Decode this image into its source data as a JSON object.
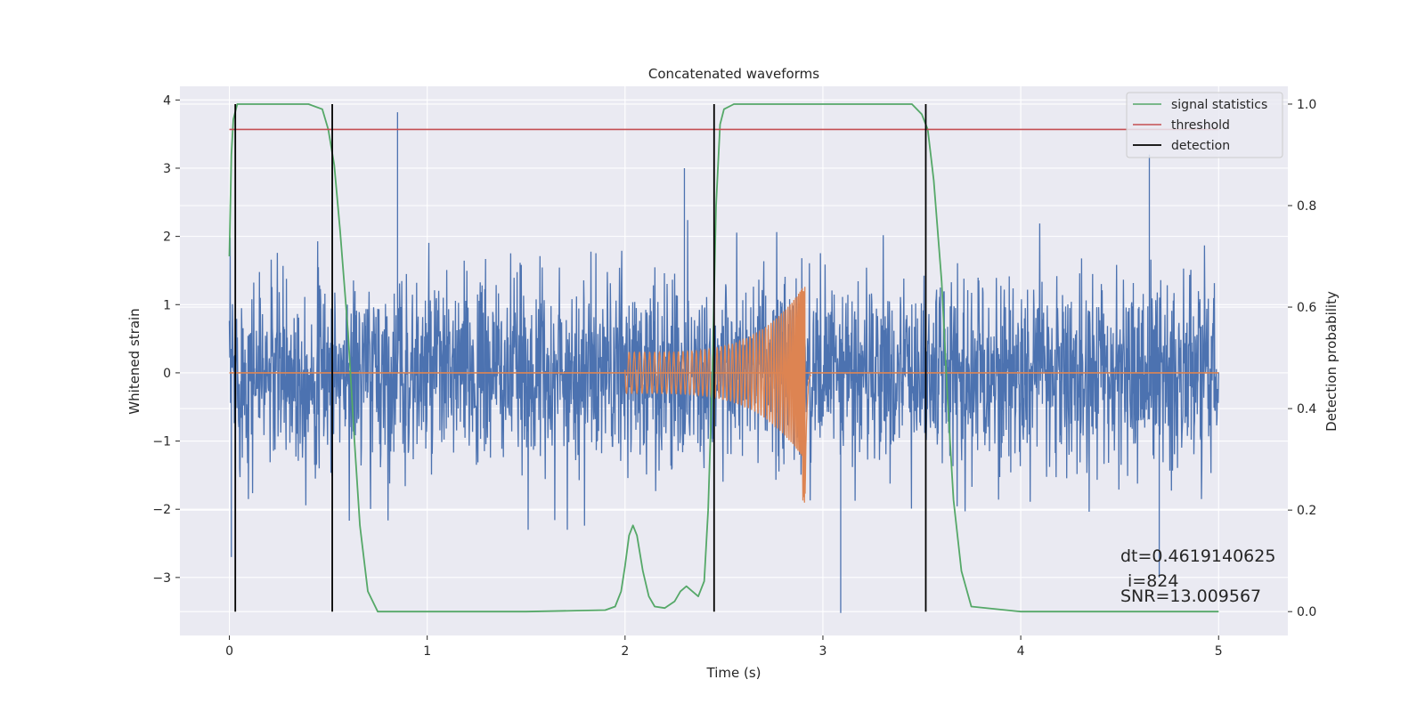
{
  "chart_data": {
    "type": "line",
    "title": "Concatenated waveforms",
    "xlabel": "Time (s)",
    "ylabel": "Whitened strain",
    "ylabel_right": "Detection probability",
    "xlim": [
      -0.25,
      5.35
    ],
    "ylim": [
      -3.85,
      4.2
    ],
    "ylim_right": [
      -0.047,
      1.035
    ],
    "x_ticks": [
      0,
      1,
      2,
      3,
      4,
      5
    ],
    "x_tick_labels": [
      "0",
      "1",
      "2",
      "3",
      "4",
      "5"
    ],
    "y_ticks": [
      4,
      3,
      2,
      1,
      0,
      -1,
      -2,
      -3
    ],
    "y_tick_labels": [
      "4",
      "3",
      "2",
      "1",
      "0",
      "−1",
      "−2",
      "−3"
    ],
    "y_right_ticks": [
      1.0,
      0.8,
      0.6,
      0.4,
      0.2,
      0.0
    ],
    "y_right_tick_labels": [
      "1.0",
      "0.8",
      "0.6",
      "0.4",
      "0.2",
      "0.0"
    ],
    "grid": true,
    "legend_position": "top-right",
    "legend": [
      {
        "label": "signal statistics",
        "color": "#55a868"
      },
      {
        "label": "threshold",
        "color": "#c44e52"
      },
      {
        "label": "detection",
        "color": "#000000"
      }
    ],
    "colors": {
      "noise": "#4c72b0",
      "chirp": "#dd8452",
      "statistic": "#55a868",
      "threshold": "#c44e52",
      "detection": "#000000",
      "background": "#eaeaf2"
    },
    "series": [
      {
        "name": "signal statistics",
        "axis": "right",
        "x": [
          0,
          0.01,
          0.02,
          0.04,
          0.06,
          0.1,
          0.4,
          0.47,
          0.5,
          0.53,
          0.56,
          0.6,
          0.63,
          0.66,
          0.7,
          0.75,
          0.9,
          1.5,
          1.9,
          1.95,
          1.98,
          2.0,
          2.02,
          2.04,
          2.06,
          2.09,
          2.12,
          2.15,
          2.2,
          2.25,
          2.28,
          2.31,
          2.34,
          2.37,
          2.4,
          2.42,
          2.44,
          2.46,
          2.48,
          2.5,
          2.55,
          3.45,
          3.5,
          3.53,
          3.56,
          3.6,
          3.63,
          3.66,
          3.7,
          3.75,
          4.0,
          5.0
        ],
        "values": [
          0.7,
          0.9,
          0.97,
          1.0,
          1.0,
          1.0,
          1.0,
          0.99,
          0.95,
          0.88,
          0.75,
          0.55,
          0.35,
          0.17,
          0.04,
          0.0,
          0.0,
          0.0,
          0.003,
          0.01,
          0.04,
          0.09,
          0.15,
          0.17,
          0.15,
          0.08,
          0.03,
          0.01,
          0.007,
          0.02,
          0.04,
          0.05,
          0.04,
          0.03,
          0.06,
          0.2,
          0.45,
          0.8,
          0.96,
          0.99,
          1.0,
          1.0,
          0.98,
          0.95,
          0.85,
          0.65,
          0.42,
          0.22,
          0.08,
          0.01,
          0.0,
          0.0
        ]
      },
      {
        "name": "threshold",
        "axis": "right",
        "x": [
          0,
          5
        ],
        "values": [
          0.95,
          0.95
        ]
      },
      {
        "name": "detection",
        "axis": "right",
        "type": "vlines",
        "x": [
          0.03,
          0.52,
          2.45,
          3.52
        ],
        "range": [
          0,
          1
        ]
      }
    ],
    "waveform_series": [
      {
        "axis": "left",
        "type": "noise",
        "x_range": [
          0,
          5
        ],
        "envelope": 0.7,
        "typical_peak": [
          -2.3,
          2.4
        ],
        "max": 3.82,
        "min": -3.52
      },
      {
        "axis": "left",
        "type": "chirp",
        "x_range": [
          2.0,
          2.94
        ],
        "amplitude_start": 0.3,
        "amplitude_peak": 1.3,
        "amplitude_peak_min": -1.95,
        "peak_time": 2.91
      }
    ],
    "annotations": [
      "dt=0.4619140625",
      "i=824",
      "SNR=13.009567"
    ]
  }
}
